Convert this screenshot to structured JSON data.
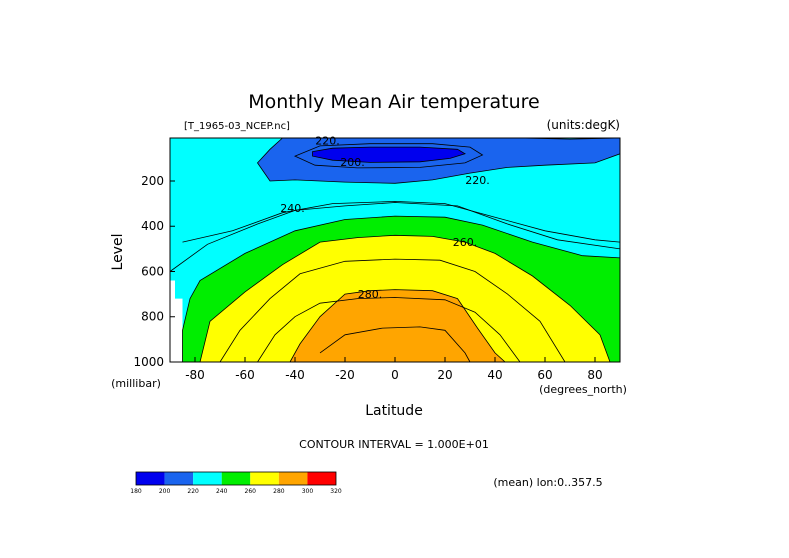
{
  "chart_data": {
    "type": "contour",
    "title": "Monthly Mean Air temperature",
    "file_label": "[T_1965-03_NCEP.nc]",
    "units_label": "(units:degK)",
    "xlabel": "Latitude",
    "x_units": "(degrees_north)",
    "ylabel": "Level",
    "y_units": "(millibar)",
    "xlim": [
      -90,
      90
    ],
    "ylim": [
      1000,
      10
    ],
    "x_ticks": [
      "-80",
      "-60",
      "-40",
      "-20",
      "0",
      "20",
      "40",
      "60",
      "80"
    ],
    "x_tick_values": [
      -80,
      -60,
      -40,
      -20,
      0,
      20,
      40,
      60,
      80
    ],
    "y_ticks": [
      "200",
      "400",
      "600",
      "800",
      "1000"
    ],
    "y_tick_values": [
      200,
      400,
      600,
      800,
      1000
    ],
    "contour_interval_text": "CONTOUR INTERVAL = 1.000E+01",
    "mean_note": "(mean) lon:0..357.5",
    "contour_labels": [
      "220.",
      "200.",
      "220.",
      "240.",
      "260.",
      "280."
    ],
    "colorbar": {
      "colors": [
        "#0000ee",
        "#1a64ee",
        "#00ffff",
        "#00ee00",
        "#ffff00",
        "#ffa500",
        "#ff0000"
      ],
      "labels": [
        "180",
        "200",
        "220",
        "240",
        "260",
        "280",
        "300",
        "320"
      ]
    },
    "levels": [
      {
        "value": 200,
        "color": "#0000ee",
        "lat": [
          -20,
          -10,
          0,
          10,
          20,
          25
        ],
        "low": [
          100,
          80,
          75,
          78,
          85,
          100
        ],
        "high": [
          100,
          120,
          125,
          125,
          115,
          100
        ]
      },
      {
        "value": 210,
        "color": "#1a64ee",
        "lat": [
          -90,
          -70,
          -50,
          -30,
          -10,
          10,
          30,
          50,
          70,
          90
        ],
        "low": [
          30,
          30,
          30,
          30,
          30,
          30,
          30,
          30,
          30,
          30
        ],
        "high": [
          30,
          30,
          30,
          30,
          30,
          30,
          30,
          30,
          30,
          30
        ]
      },
      {
        "value": 240,
        "color": "#00ee00"
      },
      {
        "value": 260,
        "color": "#ffff00"
      },
      {
        "value": 280,
        "color": "#ffa500"
      }
    ]
  }
}
